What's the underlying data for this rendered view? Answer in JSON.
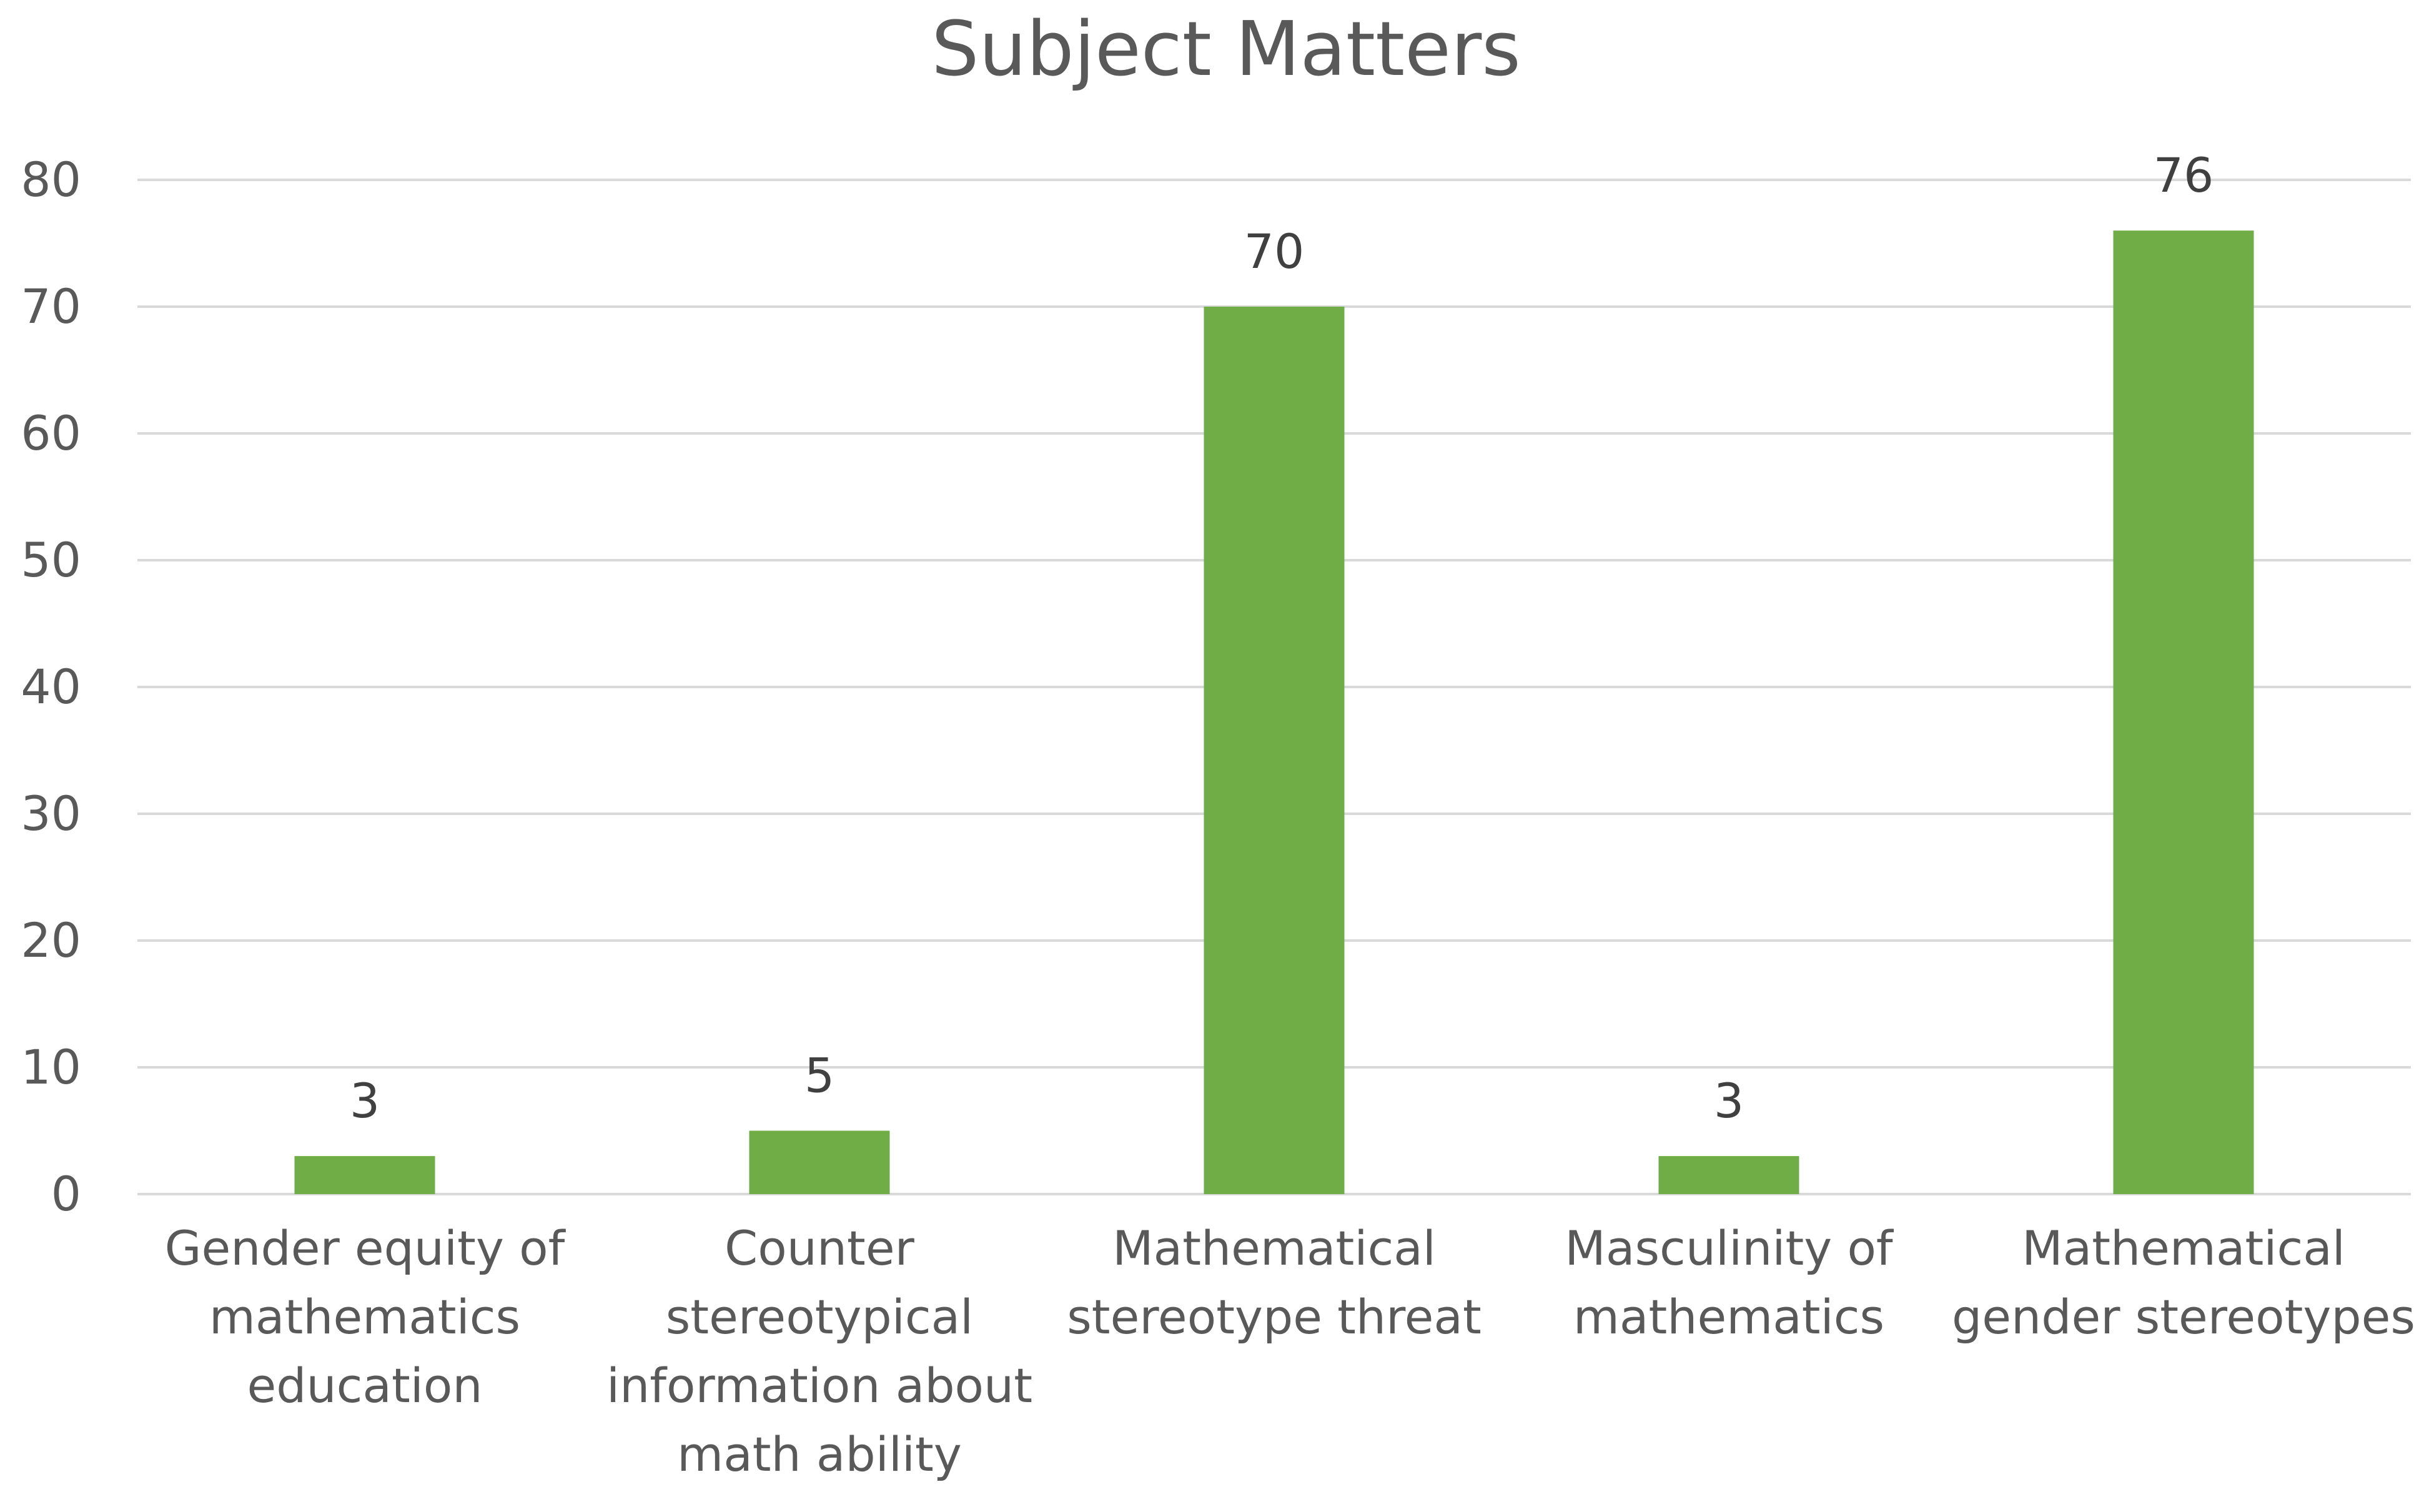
{
  "chart_data": {
    "type": "bar",
    "title": "Subject Matters",
    "xlabel": "",
    "ylabel": "",
    "categories": [
      [
        "Gender equity of",
        "mathematics",
        "education"
      ],
      [
        "Counter",
        "stereotypical",
        "information about",
        "math ability"
      ],
      [
        "Mathematical",
        "stereotype threat"
      ],
      [
        "Masculinity of",
        "mathematics"
      ],
      [
        "Mathematical",
        "gender stereotypes"
      ]
    ],
    "values": [
      3,
      5,
      70,
      3,
      76
    ],
    "data_labels": [
      "3",
      "5",
      "70",
      "3",
      "76"
    ],
    "ylim": [
      0,
      80
    ],
    "yticks": [
      0,
      10,
      20,
      30,
      40,
      50,
      60,
      70,
      80
    ],
    "ytick_labels": [
      "0",
      "10",
      "20",
      "30",
      "40",
      "50",
      "60",
      "70",
      "80"
    ],
    "grid": true,
    "legend": "none",
    "colors": {
      "bar": "#70ad47"
    }
  }
}
